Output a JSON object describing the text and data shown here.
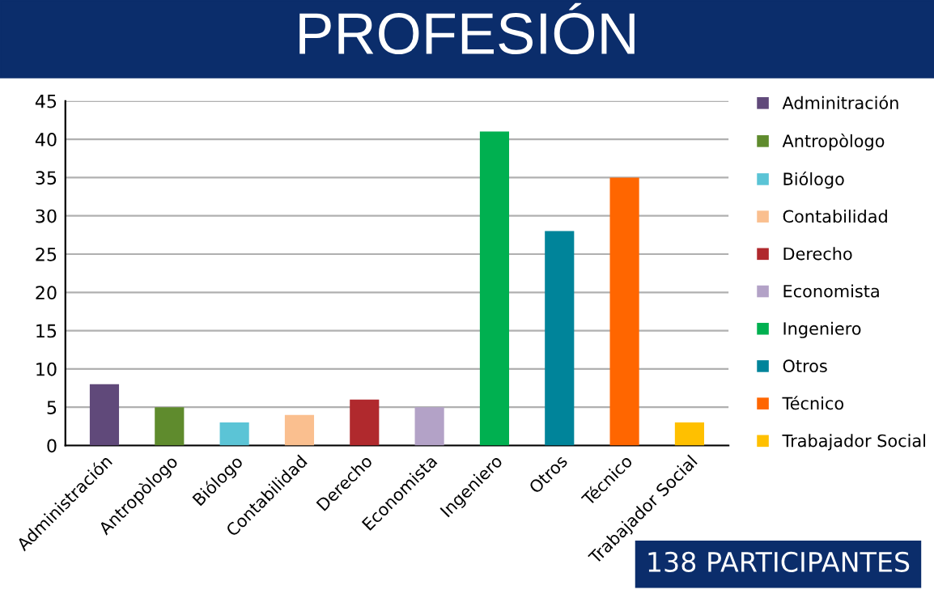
{
  "chart_data": {
    "type": "bar",
    "title": "PROFESIÓN",
    "categories": [
      "Administración",
      "Antropòlogo",
      "Biólogo",
      "Contabilidad",
      "Derecho",
      "Economista",
      "Ingeniero",
      "Otros",
      "Técnico",
      "Trabajador Social"
    ],
    "series": [
      {
        "name": "Adminitración",
        "color": "#60497a",
        "values": [
          8,
          null,
          null,
          null,
          null,
          null,
          null,
          null,
          null,
          null
        ]
      },
      {
        "name": "Antropòlogo",
        "color": "#5f8b2d",
        "values": [
          null,
          5,
          null,
          null,
          null,
          null,
          null,
          null,
          null,
          null
        ]
      },
      {
        "name": "Biólogo",
        "color": "#5bc4d6",
        "values": [
          null,
          null,
          3,
          null,
          null,
          null,
          null,
          null,
          null,
          null
        ]
      },
      {
        "name": "Contabilidad",
        "color": "#fabf8f",
        "values": [
          null,
          null,
          null,
          4,
          null,
          null,
          null,
          null,
          null,
          null
        ]
      },
      {
        "name": "Derecho",
        "color": "#b0292d",
        "values": [
          null,
          null,
          null,
          null,
          6,
          null,
          null,
          null,
          null,
          null
        ]
      },
      {
        "name": "Economista",
        "color": "#b3a2c7",
        "values": [
          null,
          null,
          null,
          null,
          null,
          5,
          null,
          null,
          null,
          null
        ]
      },
      {
        "name": "Ingeniero",
        "color": "#00b050",
        "values": [
          null,
          null,
          null,
          null,
          null,
          null,
          41,
          null,
          null,
          null
        ]
      },
      {
        "name": "Otros",
        "color": "#00849a",
        "values": [
          null,
          null,
          null,
          null,
          null,
          null,
          null,
          28,
          null,
          null
        ]
      },
      {
        "name": "Técnico",
        "color": "#ff6600",
        "values": [
          null,
          null,
          null,
          null,
          null,
          null,
          null,
          null,
          35,
          null
        ]
      },
      {
        "name": "Trabajador Social",
        "color": "#ffc000",
        "values": [
          null,
          null,
          null,
          null,
          null,
          null,
          null,
          null,
          null,
          3
        ]
      }
    ],
    "ylim": [
      0,
      45
    ],
    "yticks": [
      0,
      5,
      10,
      15,
      20,
      25,
      30,
      35,
      40,
      45
    ],
    "grid": "y",
    "legend": "right",
    "annotations": [
      "138 PARTICIPANTES"
    ]
  }
}
